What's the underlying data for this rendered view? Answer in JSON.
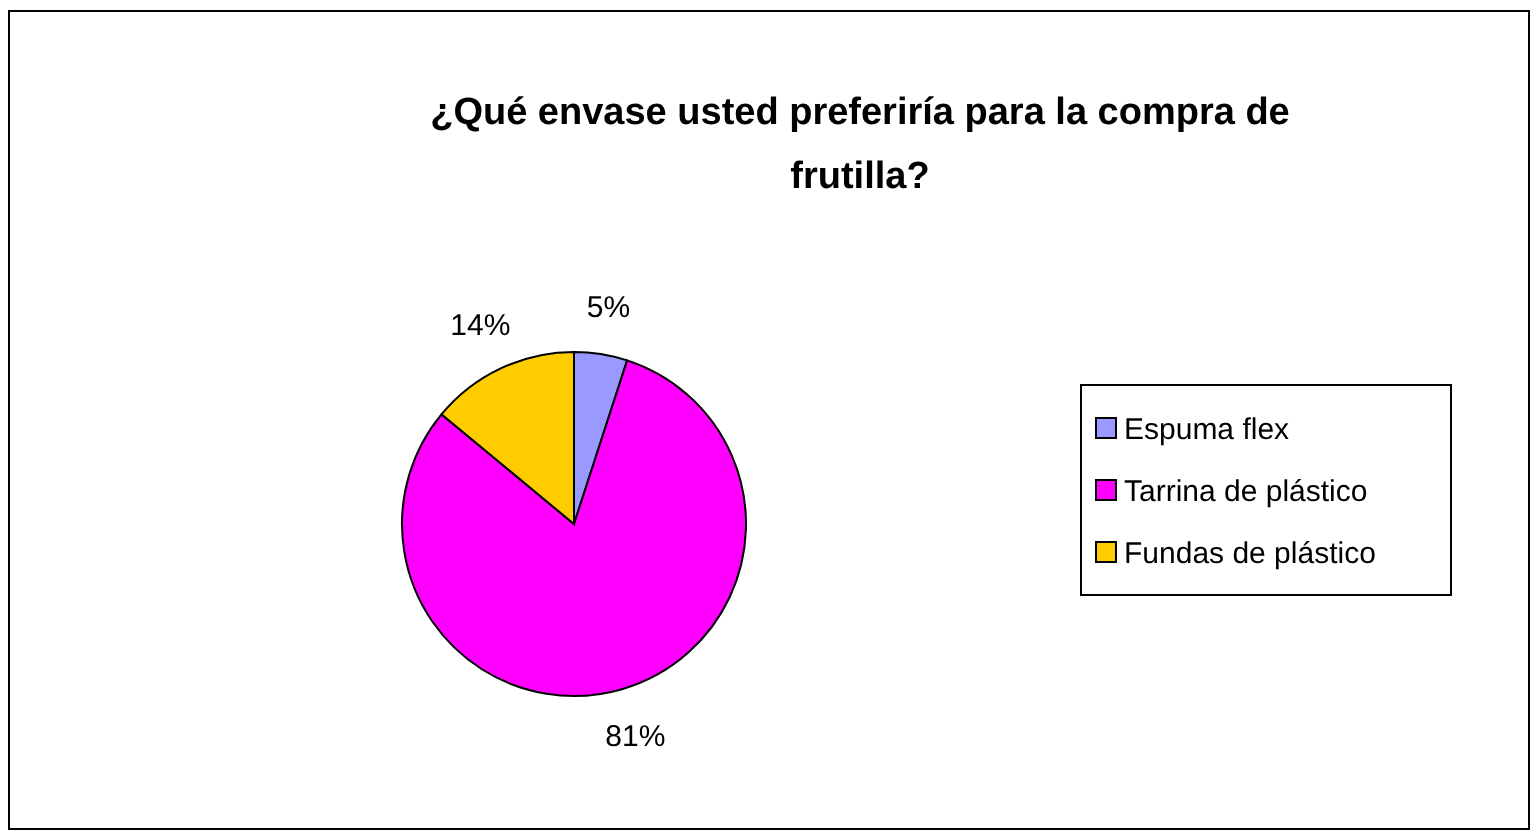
{
  "chart_data": {
    "type": "pie",
    "title": "¿Qué envase usted preferiría para la compra de frutilla?",
    "categories": [
      "Espuma flex",
      "Tarrina de plástico",
      "Fundas de plástico"
    ],
    "values": [
      5,
      81,
      14
    ],
    "colors": [
      "#9999ff",
      "#ff00ff",
      "#ffcc00"
    ],
    "value_labels": [
      "5%",
      "81%",
      "14%"
    ],
    "legend": "right"
  }
}
